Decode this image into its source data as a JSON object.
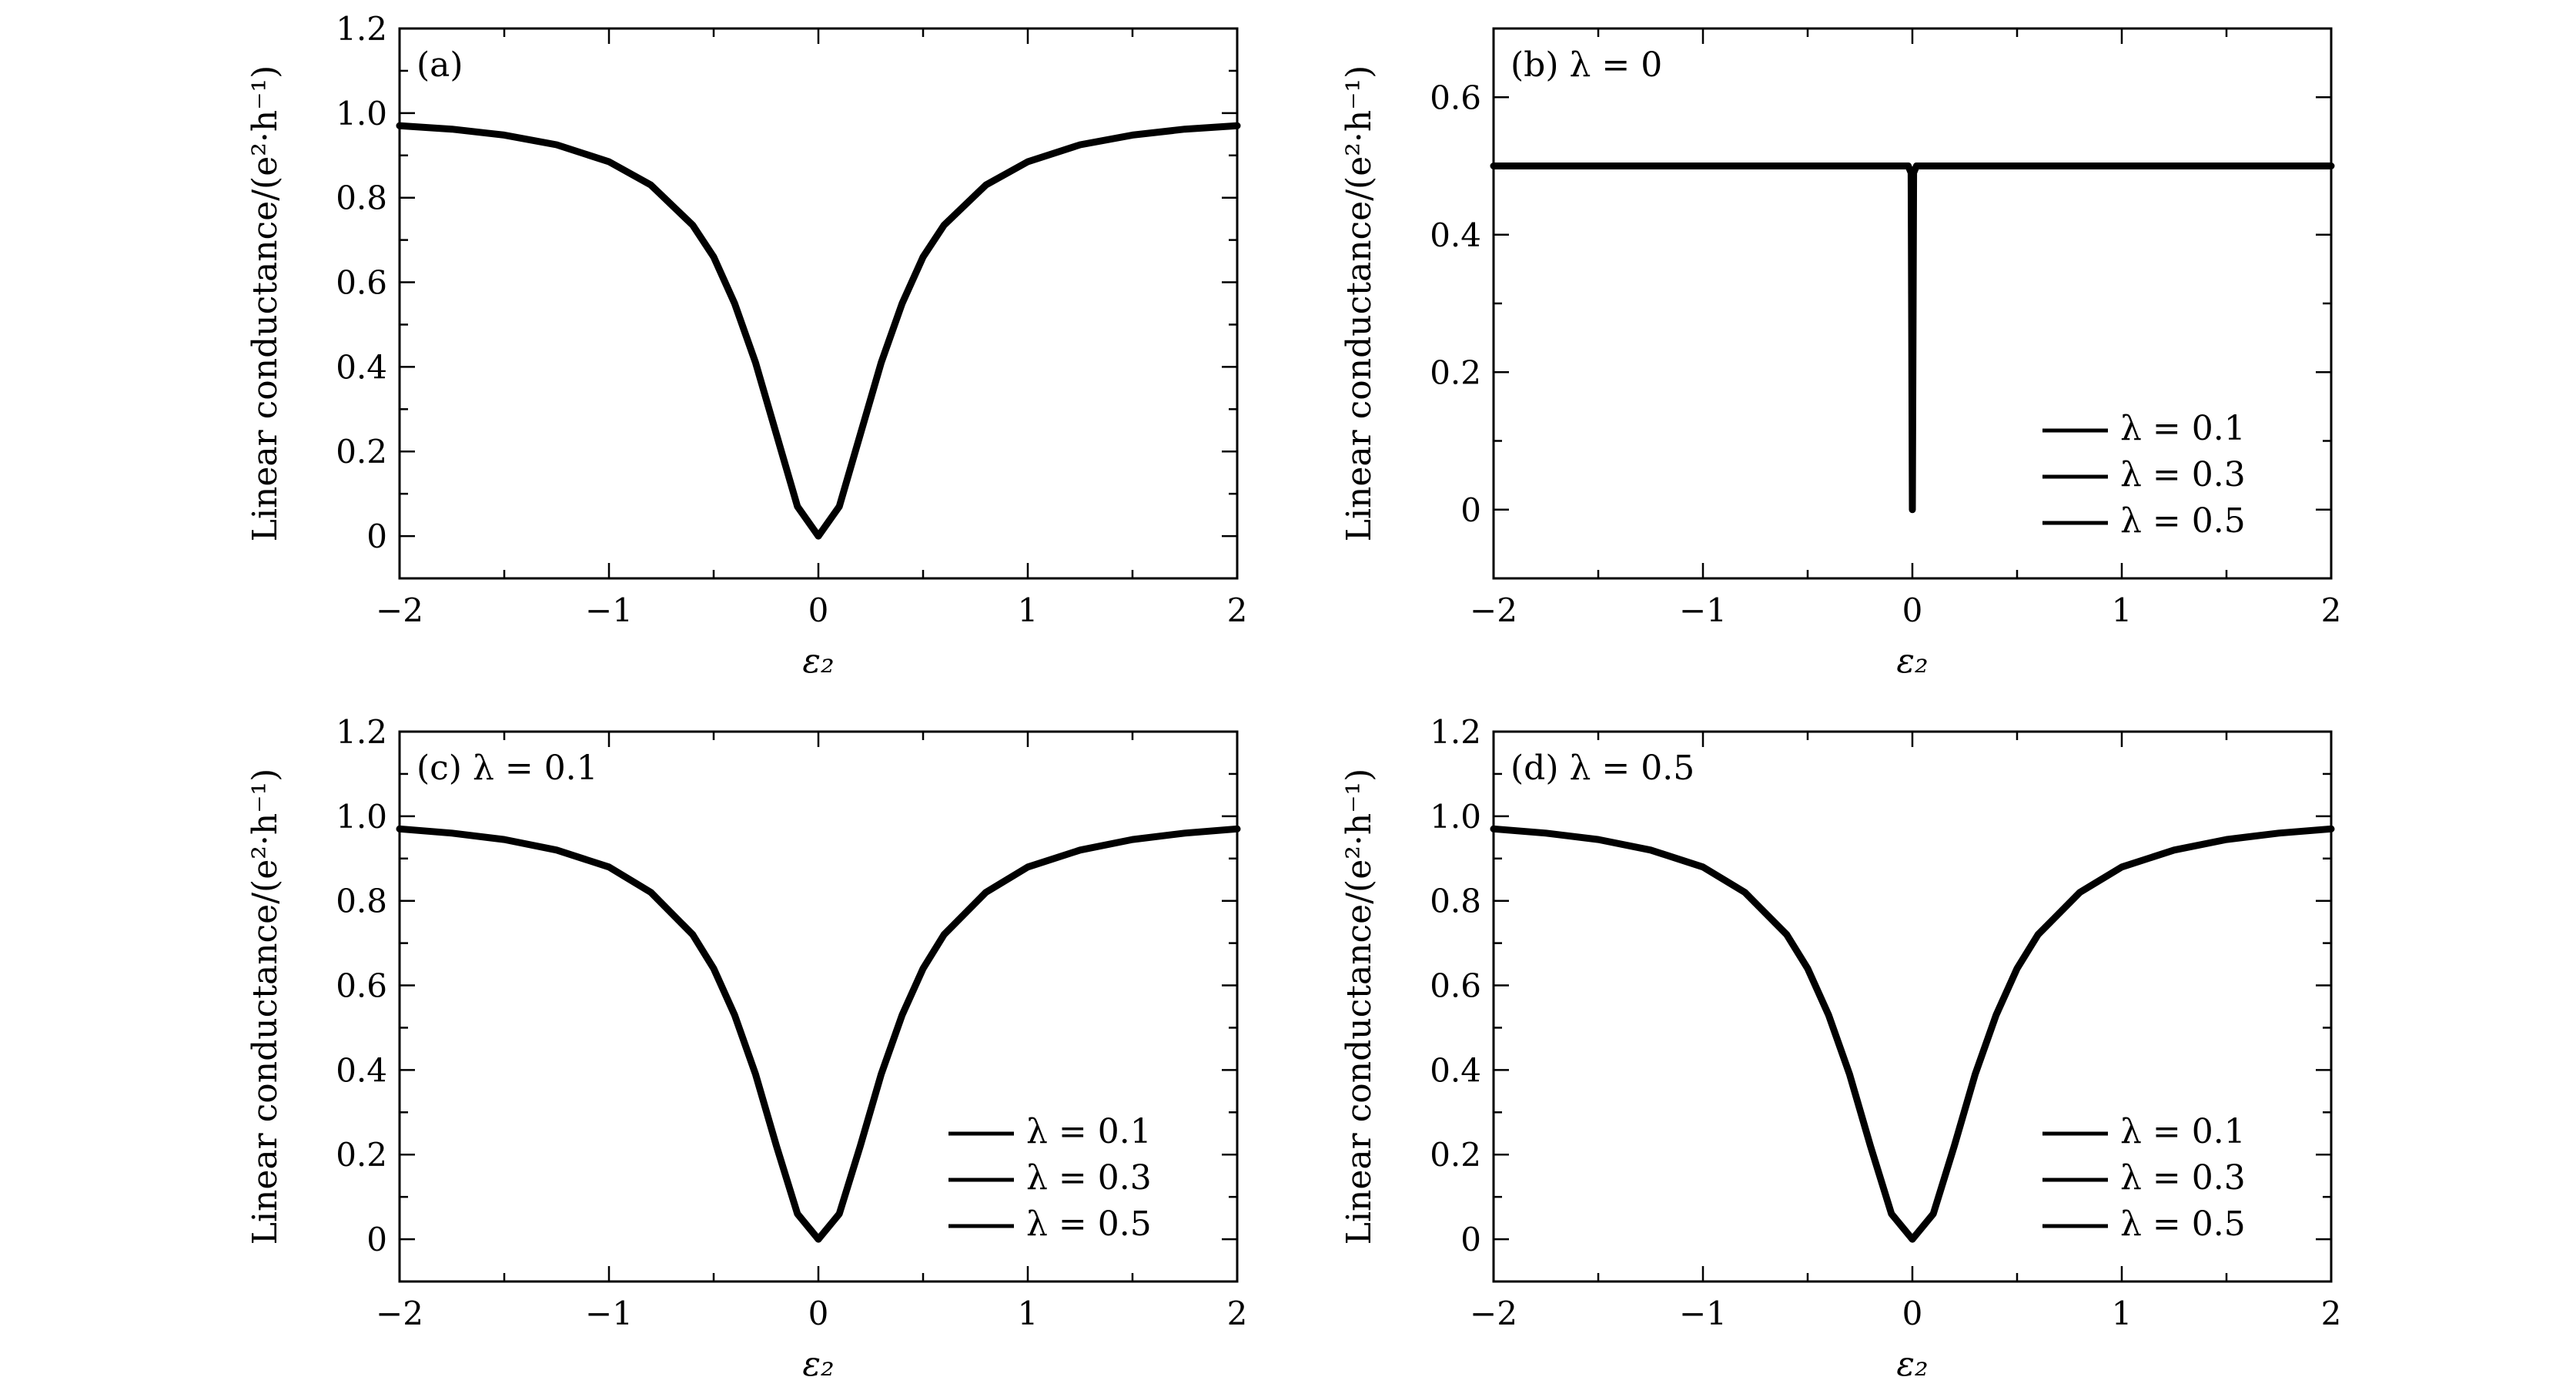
{
  "chart_data": [
    {
      "type": "line",
      "panel_label": "(a)",
      "xlabel": "ε₂",
      "ylabel": "Linear conductance/(e²·h⁻¹)",
      "xlim": [
        -2,
        2
      ],
      "ylim": [
        -0.1,
        1.2
      ],
      "xticks": [
        -2,
        -1,
        0,
        1,
        2
      ],
      "xtick_labels": [
        "−2",
        "−1",
        "0",
        "1",
        "2"
      ],
      "yticks": [
        0,
        0.2,
        0.4,
        0.6,
        0.8,
        1.0,
        1.2
      ],
      "ytick_labels": [
        "0",
        "0.2",
        "0.4",
        "0.6",
        "0.8",
        "1.0",
        "1.2"
      ],
      "legend": [],
      "series": [
        {
          "x": [
            -2,
            -1.75,
            -1.5,
            -1.25,
            -1,
            -0.8,
            -0.6,
            -0.5,
            -0.4,
            -0.3,
            -0.2,
            -0.1,
            0,
            0.1,
            0.2,
            0.3,
            0.4,
            0.5,
            0.6,
            0.8,
            1,
            1.25,
            1.5,
            1.75,
            2
          ],
          "y": [
            0.97,
            0.962,
            0.948,
            0.925,
            0.885,
            0.83,
            0.735,
            0.66,
            0.55,
            0.41,
            0.24,
            0.07,
            0,
            0.07,
            0.24,
            0.41,
            0.55,
            0.66,
            0.735,
            0.83,
            0.885,
            0.925,
            0.948,
            0.962,
            0.97
          ]
        }
      ]
    },
    {
      "type": "line",
      "panel_label": "(b) λ = 0",
      "xlabel": "ε₂",
      "ylabel": "Linear conductance/(e²·h⁻¹)",
      "xlim": [
        -2,
        2
      ],
      "ylim": [
        -0.1,
        0.7
      ],
      "xticks": [
        -2,
        -1,
        0,
        1,
        2
      ],
      "xtick_labels": [
        "−2",
        "−1",
        "0",
        "1",
        "2"
      ],
      "yticks": [
        0,
        0.2,
        0.4,
        0.6
      ],
      "ytick_labels": [
        "0",
        "0.2",
        "0.4",
        "0.6"
      ],
      "legend": [
        "λ = 0.1",
        "λ = 0.3",
        "λ = 0.5"
      ],
      "series": [
        {
          "x": [
            -2,
            -0.02,
            -0.006,
            0,
            0.006,
            0.02,
            2
          ],
          "y": [
            0.5,
            0.5,
            0.49,
            0,
            0.49,
            0.5,
            0.5
          ]
        }
      ]
    },
    {
      "type": "line",
      "panel_label": "(c) λ = 0.1",
      "xlabel": "ε₂",
      "ylabel": "Linear conductance/(e²·h⁻¹)",
      "xlim": [
        -2,
        2
      ],
      "ylim": [
        -0.1,
        1.2
      ],
      "xticks": [
        -2,
        -1,
        0,
        1,
        2
      ],
      "xtick_labels": [
        "−2",
        "−1",
        "0",
        "1",
        "2"
      ],
      "yticks": [
        0,
        0.2,
        0.4,
        0.6,
        0.8,
        1.0,
        1.2
      ],
      "ytick_labels": [
        "0",
        "0.2",
        "0.4",
        "0.6",
        "0.8",
        "1.0",
        "1.2"
      ],
      "legend": [
        "λ = 0.1",
        "λ = 0.3",
        "λ = 0.5"
      ],
      "series": [
        {
          "x": [
            -2,
            -1.75,
            -1.5,
            -1.25,
            -1,
            -0.8,
            -0.6,
            -0.5,
            -0.4,
            -0.3,
            -0.2,
            -0.1,
            0,
            0.1,
            0.2,
            0.3,
            0.4,
            0.5,
            0.6,
            0.8,
            1,
            1.25,
            1.5,
            1.75,
            2
          ],
          "y": [
            0.97,
            0.96,
            0.945,
            0.92,
            0.88,
            0.82,
            0.72,
            0.64,
            0.53,
            0.39,
            0.22,
            0.06,
            0,
            0.06,
            0.22,
            0.39,
            0.53,
            0.64,
            0.72,
            0.82,
            0.88,
            0.92,
            0.945,
            0.96,
            0.97
          ]
        }
      ]
    },
    {
      "type": "line",
      "panel_label": "(d) λ = 0.5",
      "xlabel": "ε₂",
      "ylabel": "Linear conductance/(e²·h⁻¹)",
      "xlim": [
        -2,
        2
      ],
      "ylim": [
        -0.1,
        1.2
      ],
      "xticks": [
        -2,
        -1,
        0,
        1,
        2
      ],
      "xtick_labels": [
        "−2",
        "−1",
        "0",
        "1",
        "2"
      ],
      "yticks": [
        0,
        0.2,
        0.4,
        0.6,
        0.8,
        1.0,
        1.2
      ],
      "ytick_labels": [
        "0",
        "0.2",
        "0.4",
        "0.6",
        "0.8",
        "1.0",
        "1.2"
      ],
      "legend": [
        "λ = 0.1",
        "λ = 0.3",
        "λ = 0.5"
      ],
      "series": [
        {
          "x": [
            -2,
            -1.75,
            -1.5,
            -1.25,
            -1,
            -0.8,
            -0.6,
            -0.5,
            -0.4,
            -0.3,
            -0.2,
            -0.1,
            0,
            0.1,
            0.2,
            0.3,
            0.4,
            0.5,
            0.6,
            0.8,
            1,
            1.25,
            1.5,
            1.75,
            2
          ],
          "y": [
            0.97,
            0.96,
            0.945,
            0.92,
            0.88,
            0.82,
            0.72,
            0.64,
            0.53,
            0.39,
            0.22,
            0.06,
            0,
            0.06,
            0.22,
            0.39,
            0.53,
            0.64,
            0.72,
            0.82,
            0.88,
            0.92,
            0.945,
            0.96,
            0.97
          ]
        }
      ]
    }
  ]
}
